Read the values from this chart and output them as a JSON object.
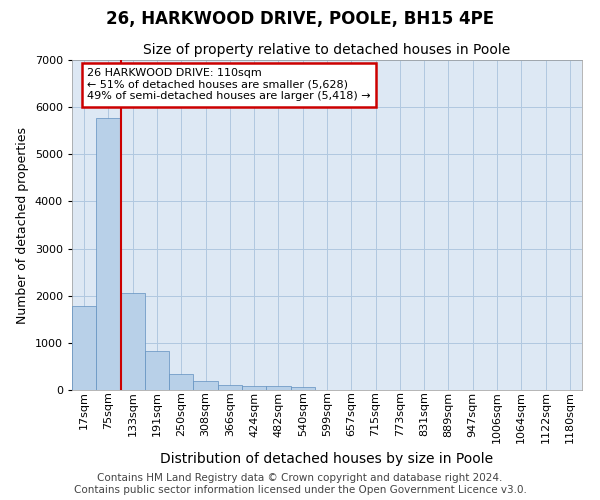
{
  "title": "26, HARKWOOD DRIVE, POOLE, BH15 4PE",
  "subtitle": "Size of property relative to detached houses in Poole",
  "xlabel": "Distribution of detached houses by size in Poole",
  "ylabel": "Number of detached properties",
  "bar_labels": [
    "17sqm",
    "75sqm",
    "133sqm",
    "191sqm",
    "250sqm",
    "308sqm",
    "366sqm",
    "424sqm",
    "482sqm",
    "540sqm",
    "599sqm",
    "657sqm",
    "715sqm",
    "773sqm",
    "831sqm",
    "889sqm",
    "947sqm",
    "1006sqm",
    "1064sqm",
    "1122sqm",
    "1180sqm"
  ],
  "bar_values": [
    1780,
    5780,
    2060,
    820,
    340,
    185,
    115,
    90,
    80,
    65,
    0,
    0,
    0,
    0,
    0,
    0,
    0,
    0,
    0,
    0,
    0
  ],
  "bar_color": "#b8d0e8",
  "bar_edge_color": "#6090c0",
  "red_line_x": 1.5,
  "ylim_max": 7000,
  "annotation_text": "26 HARKWOOD DRIVE: 110sqm\n← 51% of detached houses are smaller (5,628)\n49% of semi-detached houses are larger (5,418) →",
  "annotation_box_facecolor": "#ffffff",
  "annotation_box_edgecolor": "#cc0000",
  "footer_line1": "Contains HM Land Registry data © Crown copyright and database right 2024.",
  "footer_line2": "Contains public sector information licensed under the Open Government Licence v3.0.",
  "plot_bg_color": "#dde8f4",
  "fig_bg_color": "#ffffff",
  "grid_color": "#b0c8e0",
  "title_fontsize": 12,
  "subtitle_fontsize": 10,
  "ylabel_fontsize": 9,
  "xlabel_fontsize": 10,
  "tick_fontsize": 8,
  "annot_fontsize": 8,
  "footer_fontsize": 7.5
}
